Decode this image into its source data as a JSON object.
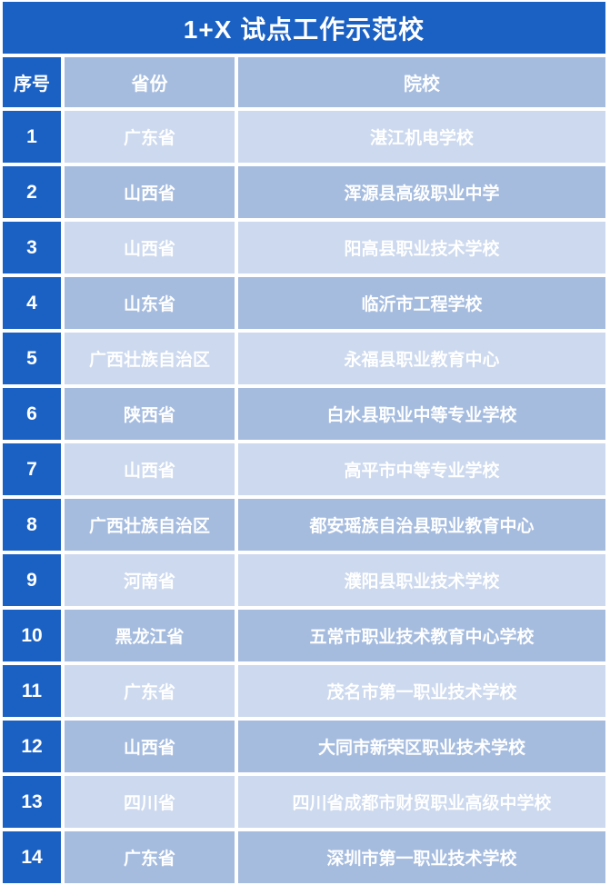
{
  "title": "1+X 试点工作示范校",
  "colors": {
    "primary_blue": "#1b61c4",
    "row_light": "#ccd9ee",
    "row_medium": "#a5bcdf",
    "background": "#ffffff",
    "text": "#ffffff"
  },
  "table": {
    "headers": {
      "index": "序号",
      "province": "省份",
      "school": "院校"
    },
    "rows": [
      {
        "index": "1",
        "province": "广东省",
        "school": "湛江机电学校"
      },
      {
        "index": "2",
        "province": "山西省",
        "school": "浑源县高级职业中学"
      },
      {
        "index": "3",
        "province": "山西省",
        "school": "阳高县职业技术学校"
      },
      {
        "index": "4",
        "province": "山东省",
        "school": "临沂市工程学校"
      },
      {
        "index": "5",
        "province": "广西壮族自治区",
        "school": "永福县职业教育中心"
      },
      {
        "index": "6",
        "province": "陕西省",
        "school": "白水县职业中等专业学校"
      },
      {
        "index": "7",
        "province": "山西省",
        "school": "高平市中等专业学校"
      },
      {
        "index": "8",
        "province": "广西壮族自治区",
        "school": "都安瑶族自治县职业教育中心"
      },
      {
        "index": "9",
        "province": "河南省",
        "school": "濮阳县职业技术学校"
      },
      {
        "index": "10",
        "province": "黑龙江省",
        "school": "五常市职业技术教育中心学校"
      },
      {
        "index": "11",
        "province": "广东省",
        "school": "茂名市第一职业技术学校"
      },
      {
        "index": "12",
        "province": "山西省",
        "school": "大同市新荣区职业技术学校"
      },
      {
        "index": "13",
        "province": "四川省",
        "school": "四川省成都市财贸职业高级中学校"
      },
      {
        "index": "14",
        "province": "广东省",
        "school": "深圳市第一职业技术学校"
      }
    ]
  }
}
